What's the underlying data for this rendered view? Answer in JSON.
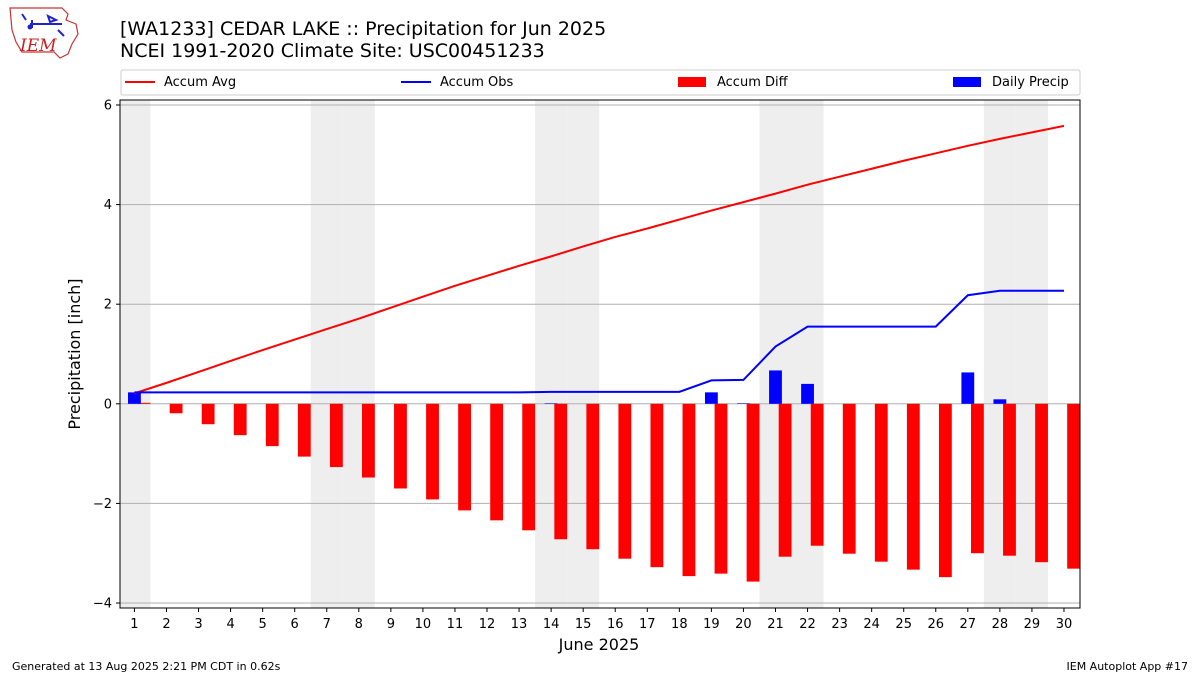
{
  "logo": {
    "text": "IEM"
  },
  "title_line1": "[WA1233] CEDAR LAKE :: Precipitation for Jun 2025",
  "title_line2": "NCEI 1991-2020 Climate Site: USC00451233",
  "footer_left": "Generated at 13 Aug 2025 2:21 PM CDT in 0.62s",
  "footer_right": "IEM Autoplot App #17",
  "colors": {
    "accum_avg": "#ff0000",
    "accum_obs": "#0000ff",
    "accum_diff": "#ff0000",
    "daily_precip": "#0000ff",
    "weekend_shade": "#eeeeee",
    "grid": "#b0b0b0"
  },
  "chart_data": {
    "type": "bar",
    "xlabel": "June 2025",
    "ylabel": "Precipitation [inch]",
    "ylim": [
      -4.1,
      6.1
    ],
    "yticks": [
      -4,
      -2,
      0,
      2,
      4,
      6
    ],
    "ytick_labels": [
      "−4",
      "−2",
      "0",
      "2",
      "4",
      "6"
    ],
    "grid": "horizontal",
    "legend_position": "top",
    "x": [
      1,
      2,
      3,
      4,
      5,
      6,
      7,
      8,
      9,
      10,
      11,
      12,
      13,
      14,
      15,
      16,
      17,
      18,
      19,
      20,
      21,
      22,
      23,
      24,
      25,
      26,
      27,
      28,
      29,
      30
    ],
    "shaded_days": [
      1,
      7,
      8,
      14,
      15,
      21,
      22,
      28,
      29
    ],
    "series": [
      {
        "name": "Accum Avg",
        "type": "line",
        "values": [
          0.21,
          0.42,
          0.64,
          0.86,
          1.08,
          1.29,
          1.5,
          1.71,
          1.93,
          2.15,
          2.37,
          2.57,
          2.77,
          2.96,
          3.16,
          3.35,
          3.52,
          3.7,
          3.88,
          4.05,
          4.22,
          4.4,
          4.56,
          4.72,
          4.88,
          5.03,
          5.18,
          5.32,
          5.45,
          5.58
        ]
      },
      {
        "name": "Accum Obs",
        "type": "line",
        "values": [
          0.23,
          0.23,
          0.23,
          0.23,
          0.23,
          0.23,
          0.23,
          0.23,
          0.23,
          0.23,
          0.23,
          0.23,
          0.23,
          0.24,
          0.24,
          0.24,
          0.24,
          0.24,
          0.47,
          0.48,
          1.15,
          1.55,
          1.55,
          1.55,
          1.55,
          1.55,
          2.18,
          2.27,
          2.27,
          2.27
        ]
      },
      {
        "name": "Accum Diff",
        "type": "bar",
        "values": [
          0.02,
          -0.19,
          -0.41,
          -0.63,
          -0.85,
          -1.06,
          -1.27,
          -1.48,
          -1.7,
          -1.92,
          -2.14,
          -2.34,
          -2.54,
          -2.72,
          -2.92,
          -3.11,
          -3.28,
          -3.46,
          -3.41,
          -3.57,
          -3.07,
          -2.85,
          -3.01,
          -3.17,
          -3.33,
          -3.48,
          -3.0,
          -3.05,
          -3.18,
          -3.31
        ]
      },
      {
        "name": "Daily Precip",
        "type": "bar",
        "values": [
          0.23,
          0,
          0,
          0,
          0,
          0,
          0,
          0,
          0,
          0,
          0,
          0,
          0,
          0.01,
          0,
          0,
          0,
          0,
          0.23,
          0.01,
          0.67,
          0.4,
          0,
          0,
          0,
          0,
          0.63,
          0.09,
          0,
          0
        ]
      }
    ]
  }
}
